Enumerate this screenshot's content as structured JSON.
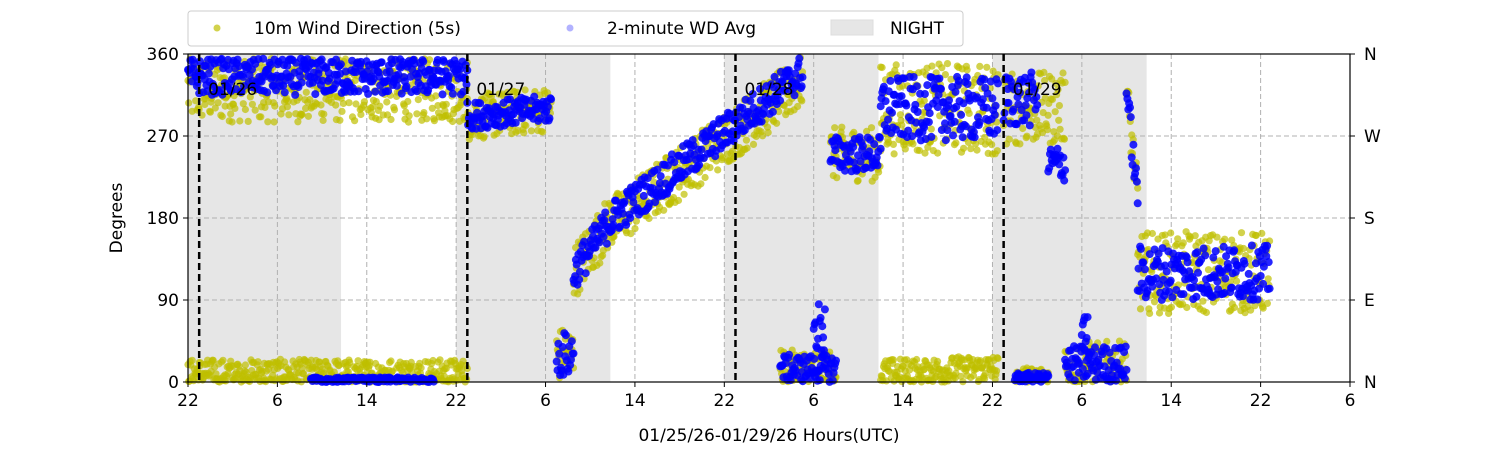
{
  "chart_data": {
    "type": "scatter",
    "ylabel": "Degrees",
    "xlabel": "01/25/26-01/29/26  Hours(UTC)",
    "x_unit": "hours since 01/25/26 22:00 UTC",
    "xlim": [
      0,
      104
    ],
    "ylim": [
      0,
      360
    ],
    "grid": true,
    "legend_placement": "top-left, above plot",
    "x_ticks": [
      {
        "h": 0,
        "label": "22"
      },
      {
        "h": 8,
        "label": "6"
      },
      {
        "h": 16,
        "label": "14"
      },
      {
        "h": 24,
        "label": "22"
      },
      {
        "h": 32,
        "label": "6"
      },
      {
        "h": 40,
        "label": "14"
      },
      {
        "h": 48,
        "label": "22"
      },
      {
        "h": 56,
        "label": "6"
      },
      {
        "h": 64,
        "label": "14"
      },
      {
        "h": 72,
        "label": "22"
      },
      {
        "h": 80,
        "label": "6"
      },
      {
        "h": 88,
        "label": "14"
      },
      {
        "h": 96,
        "label": "22"
      },
      {
        "h": 104,
        "label": "6"
      }
    ],
    "y_ticks": [
      {
        "v": 0,
        "label": "0"
      },
      {
        "v": 90,
        "label": "90"
      },
      {
        "v": 180,
        "label": "180"
      },
      {
        "v": 270,
        "label": "270"
      },
      {
        "v": 360,
        "label": "360"
      }
    ],
    "y_ticks_right": [
      {
        "v": 0,
        "label": "N"
      },
      {
        "v": 90,
        "label": "E"
      },
      {
        "v": 180,
        "label": "S"
      },
      {
        "v": 270,
        "label": "W"
      },
      {
        "v": 360,
        "label": "N"
      }
    ],
    "day_markers": [
      {
        "h": 1,
        "label": "01/26"
      },
      {
        "h": 25,
        "label": "01/27"
      },
      {
        "h": 49,
        "label": "01/28"
      },
      {
        "h": 73,
        "label": "01/29"
      }
    ],
    "night_periods": [
      [
        0,
        13.7
      ],
      [
        24,
        37.8
      ],
      [
        48,
        61.8
      ],
      [
        72,
        85.8
      ]
    ],
    "legend": [
      {
        "label": "10m Wind Direction (5s)",
        "kind": "dot",
        "color": "#bfbf00"
      },
      {
        "label": "2-minute WD Avg",
        "kind": "dot",
        "color": "#0000ff"
      },
      {
        "label": "NIGHT",
        "kind": "patch",
        "color": "#e6e6e6"
      }
    ],
    "series": [
      {
        "name": "10m Wind Direction (5s)",
        "color": "#bfbf00",
        "segments": [
          {
            "from_h": 0,
            "to_h": 25,
            "start_deg": 320,
            "end_deg": 320,
            "spread": 35
          },
          {
            "from_h": 0,
            "to_h": 25,
            "start_deg": 10,
            "end_deg": 10,
            "spread": 15
          },
          {
            "from_h": 25,
            "to_h": 32.5,
            "start_deg": 290,
            "end_deg": 300,
            "spread": 25
          },
          {
            "from_h": 33,
            "to_h": 34.5,
            "start_deg": 30,
            "end_deg": 30,
            "spread": 30
          },
          {
            "from_h": 34.5,
            "to_h": 38,
            "start_deg": 120,
            "end_deg": 180,
            "spread": 30
          },
          {
            "from_h": 38,
            "to_h": 55,
            "start_deg": 175,
            "end_deg": 330,
            "spread": 30
          },
          {
            "from_h": 53,
            "to_h": 58,
            "start_deg": 15,
            "end_deg": 15,
            "spread": 20
          },
          {
            "from_h": 57.5,
            "to_h": 62,
            "start_deg": 250,
            "end_deg": 250,
            "spread": 30
          },
          {
            "from_h": 62,
            "to_h": 72.5,
            "start_deg": 300,
            "end_deg": 300,
            "spread": 50
          },
          {
            "from_h": 62,
            "to_h": 72.5,
            "start_deg": 10,
            "end_deg": 15,
            "spread": 15
          },
          {
            "from_h": 73,
            "to_h": 78.5,
            "start_deg": 300,
            "end_deg": 300,
            "spread": 40
          },
          {
            "from_h": 74,
            "to_h": 77,
            "start_deg": 8,
            "end_deg": 8,
            "spread": 8
          },
          {
            "from_h": 78.5,
            "to_h": 84,
            "start_deg": 20,
            "end_deg": 20,
            "spread": 25
          },
          {
            "from_h": 84,
            "to_h": 85,
            "start_deg": 320,
            "end_deg": 200,
            "spread": 25
          },
          {
            "from_h": 85,
            "to_h": 96.8,
            "start_deg": 120,
            "end_deg": 120,
            "spread": 45
          }
        ]
      },
      {
        "name": "2-minute WD Avg",
        "color": "#0000ff",
        "segments": [
          {
            "from_h": 0,
            "to_h": 25,
            "start_deg": 335,
            "end_deg": 335,
            "spread": 20
          },
          {
            "from_h": 11,
            "to_h": 22,
            "start_deg": 2,
            "end_deg": 2,
            "spread": 3
          },
          {
            "from_h": 25,
            "to_h": 32.5,
            "start_deg": 292,
            "end_deg": 300,
            "spread": 15
          },
          {
            "from_h": 33,
            "to_h": 34.5,
            "start_deg": 30,
            "end_deg": 30,
            "spread": 25
          },
          {
            "from_h": 34.5,
            "to_h": 38,
            "start_deg": 120,
            "end_deg": 180,
            "spread": 20
          },
          {
            "from_h": 38,
            "to_h": 55,
            "start_deg": 180,
            "end_deg": 340,
            "spread": 20
          },
          {
            "from_h": 53,
            "to_h": 58,
            "start_deg": 15,
            "end_deg": 15,
            "spread": 15
          },
          {
            "from_h": 56,
            "to_h": 57,
            "start_deg": 60,
            "end_deg": 60,
            "spread": 30
          },
          {
            "from_h": 57.5,
            "to_h": 62,
            "start_deg": 250,
            "end_deg": 250,
            "spread": 20
          },
          {
            "from_h": 62,
            "to_h": 72.5,
            "start_deg": 300,
            "end_deg": 300,
            "spread": 35
          },
          {
            "from_h": 73,
            "to_h": 76,
            "start_deg": 310,
            "end_deg": 310,
            "spread": 30
          },
          {
            "from_h": 74,
            "to_h": 77,
            "start_deg": 5,
            "end_deg": 5,
            "spread": 5
          },
          {
            "from_h": 77,
            "to_h": 78.5,
            "start_deg": 240,
            "end_deg": 240,
            "spread": 20
          },
          {
            "from_h": 78.5,
            "to_h": 84,
            "start_deg": 20,
            "end_deg": 20,
            "spread": 20
          },
          {
            "from_h": 80,
            "to_h": 80.6,
            "start_deg": 60,
            "end_deg": 60,
            "spread": 30
          },
          {
            "from_h": 84,
            "to_h": 85,
            "start_deg": 320,
            "end_deg": 200,
            "spread": 20
          },
          {
            "from_h": 85,
            "to_h": 96.8,
            "start_deg": 120,
            "end_deg": 120,
            "spread": 30
          }
        ]
      }
    ]
  }
}
